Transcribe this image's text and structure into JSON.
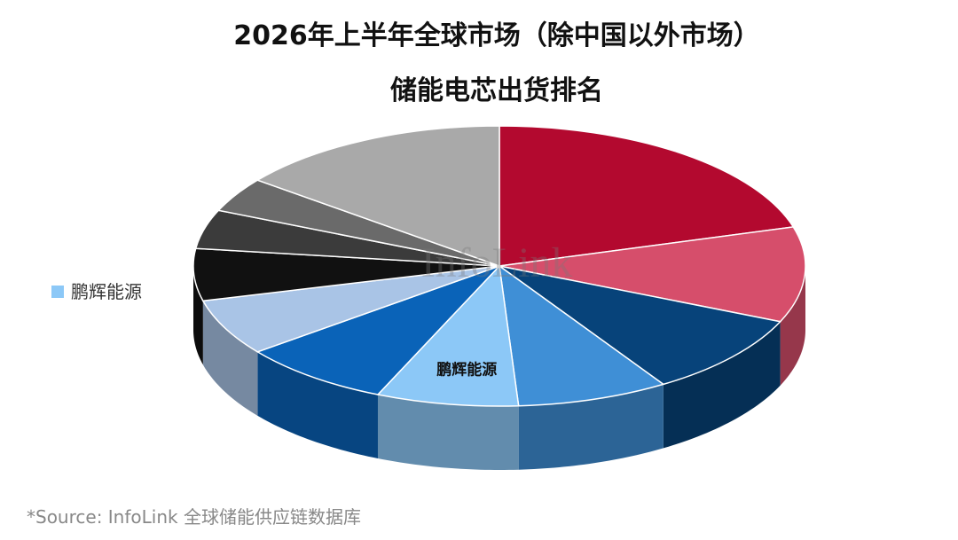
{
  "chart_data": {
    "type": "pie",
    "title": "2026年上半年全球市场（除中国以外市场）",
    "subtitle": "储能电芯出货排名",
    "watermark": "InfoLink",
    "source": "*Source: InfoLink 全球储能供应链数据库",
    "categories": [
      null,
      null,
      null,
      null,
      "鹏辉能源",
      null,
      null,
      null,
      null,
      null,
      null
    ],
    "values": [
      20.5,
      11,
      9.5,
      8,
      7.5,
      8,
      6.5,
      6,
      4.5,
      4,
      14.5
    ],
    "colors": [
      "#b3092f",
      "#d64e6b",
      "#07437a",
      "#3f8fd6",
      "#8cc8f7",
      "#0a63b8",
      "#a9c4e6",
      "#111111",
      "#3b3b3b",
      "#6a6a6a",
      "#a9a9a9"
    ],
    "legend": "left"
  }
}
